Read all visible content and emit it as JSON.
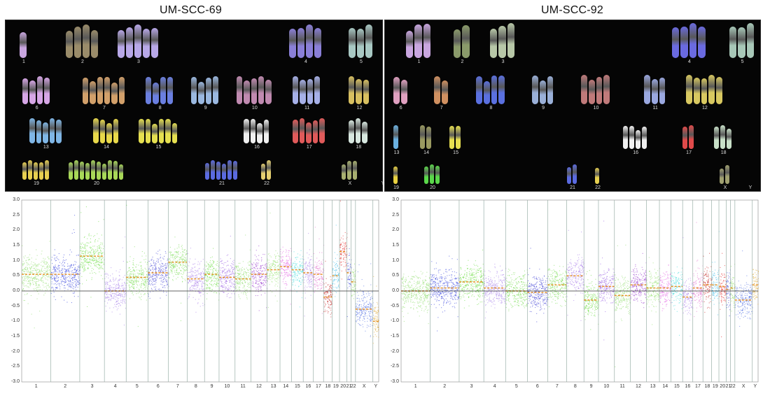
{
  "panels": [
    {
      "id": "left",
      "title": "UM-SCC-69",
      "karyotype_labels": [
        "1",
        "2",
        "3",
        "4",
        "5",
        "6",
        "7",
        "8",
        "9",
        "10",
        "11",
        "12",
        "13",
        "14",
        "15",
        "16",
        "17",
        "18",
        "19",
        "20",
        "21",
        "22",
        "X",
        "Y"
      ],
      "karyotype_colors": [
        "#c9a6e0",
        "#9a8c6a",
        "#b8a8e8",
        "#8a7fd8",
        "#a9c9c4",
        "#d6a6e6",
        "#d2a06a",
        "#6a7fe0",
        "#9ab8e0",
        "#c08ab0",
        "#a6b0e8",
        "#d8c060",
        "#7fb6e6",
        "#e8d84a",
        "#e6e050",
        "#f0f0f0",
        "#e05a5a",
        "#d8e8e0",
        "#e8d050",
        "#a8d858",
        "#5a6ae0",
        "#e6d070",
        "#a8b070",
        "#dddddd"
      ],
      "chart_data": {
        "type": "scatter",
        "title": "",
        "xlabel": "",
        "ylabel": "",
        "ylim": [
          -3.0,
          3.0
        ],
        "yticks": [
          -3.0,
          -2.5,
          -2.0,
          -1.5,
          -1.0,
          -0.5,
          0,
          0.5,
          1.0,
          1.5,
          2.0,
          2.5,
          3.0
        ],
        "categories": [
          "1",
          "2",
          "3",
          "4",
          "5",
          "6",
          "7",
          "8",
          "9",
          "10",
          "11",
          "12",
          "13",
          "14",
          "15",
          "16",
          "17",
          "18",
          "19",
          "20",
          "21",
          "22",
          "X",
          "Y"
        ],
        "widths": [
          10,
          10,
          8.5,
          7.5,
          7.5,
          7,
          6.5,
          6,
          5,
          5.5,
          5.5,
          5.5,
          4.5,
          4,
          4,
          3.5,
          3.5,
          3,
          2.5,
          2.5,
          1.5,
          1.5,
          6,
          2
        ],
        "segment_means": [
          0.55,
          0.55,
          1.15,
          0.0,
          0.45,
          0.6,
          0.95,
          0.4,
          0.55,
          0.45,
          0.4,
          0.55,
          0.7,
          0.8,
          0.7,
          0.6,
          0.55,
          -0.2,
          0.5,
          1.3,
          0.6,
          0.3,
          -0.6,
          -1.0
        ],
        "series_colors": [
          "#7fd85a",
          "#2030d8",
          "#5ad82a",
          "#9a70e8",
          "#6ad840",
          "#2a2ad0",
          "#6ad840",
          "#a070e8",
          "#5ad82a",
          "#9050e0",
          "#7fd85a",
          "#8a20c8",
          "#8ae060",
          "#e050e0",
          "#30d8d8",
          "#a070e8",
          "#e060c8",
          "#c01010",
          "#30b8e8",
          "#e01010",
          "#2030d8",
          "#80d850",
          "#4060e0",
          "#d8a020"
        ]
      }
    },
    {
      "id": "right",
      "title": "UM-SCC-92",
      "karyotype_labels": [
        "1",
        "2",
        "3",
        "4",
        "5",
        "6",
        "7",
        "8",
        "9",
        "10",
        "11",
        "12",
        "13",
        "14",
        "15",
        "16",
        "17",
        "18",
        "19",
        "20",
        "21",
        "22",
        "X",
        "Y"
      ],
      "karyotype_colors": [
        "#c9a6e0",
        "#8a9a6a",
        "#b8c8a8",
        "#6a6ae0",
        "#a8c8b8",
        "#e0a0c0",
        "#d09060",
        "#5a70e0",
        "#9ab0d8",
        "#c07a7a",
        "#9aa8e0",
        "#d8c860",
        "#6ab0e0",
        "#9a9a60",
        "#e8e050",
        "#f0f0f0",
        "#e04a4a",
        "#c8e0c8",
        "#e8d040",
        "#5ad84a",
        "#5a6ae0",
        "#e6d050",
        "#a0a070",
        "#dddddd"
      ],
      "chart_data": {
        "type": "scatter",
        "title": "",
        "xlabel": "",
        "ylabel": "",
        "ylim": [
          -3.0,
          3.0
        ],
        "yticks": [
          -3.0,
          -2.5,
          -2.0,
          -1.5,
          -1.0,
          -0.5,
          0,
          0.5,
          1.0,
          1.5,
          2.0,
          2.5,
          3.0
        ],
        "categories": [
          "1",
          "2",
          "3",
          "4",
          "5",
          "6",
          "7",
          "8",
          "9",
          "10",
          "11",
          "12",
          "13",
          "14",
          "15",
          "16",
          "17",
          "18",
          "19",
          "20",
          "21",
          "22",
          "X",
          "Y"
        ],
        "widths": [
          10,
          10,
          8.5,
          7.5,
          7.5,
          7,
          6.5,
          6,
          5,
          5.5,
          5.5,
          5.5,
          4.5,
          4,
          4,
          3.5,
          3.5,
          3,
          2.5,
          2.5,
          1.5,
          1.5,
          6,
          2
        ],
        "segment_means": [
          0.0,
          0.1,
          0.3,
          0.1,
          0.0,
          -0.05,
          0.2,
          0.5,
          -0.3,
          0.15,
          -0.15,
          0.2,
          0.1,
          0.1,
          0.15,
          -0.2,
          0.1,
          0.2,
          0.2,
          0.15,
          0.05,
          0.1,
          -0.3,
          0.2
        ],
        "series_colors": [
          "#7fd85a",
          "#2030d8",
          "#5ad82a",
          "#9a70e8",
          "#6ad840",
          "#2a2ad0",
          "#6ad840",
          "#a070e8",
          "#5ad82a",
          "#9050e0",
          "#7fd85a",
          "#8a20c8",
          "#8ae060",
          "#e050e0",
          "#30d8d8",
          "#a070e8",
          "#e060c8",
          "#c01010",
          "#30b8e8",
          "#e01010",
          "#2030d8",
          "#80d850",
          "#4060e0",
          "#d8a020"
        ]
      }
    }
  ]
}
